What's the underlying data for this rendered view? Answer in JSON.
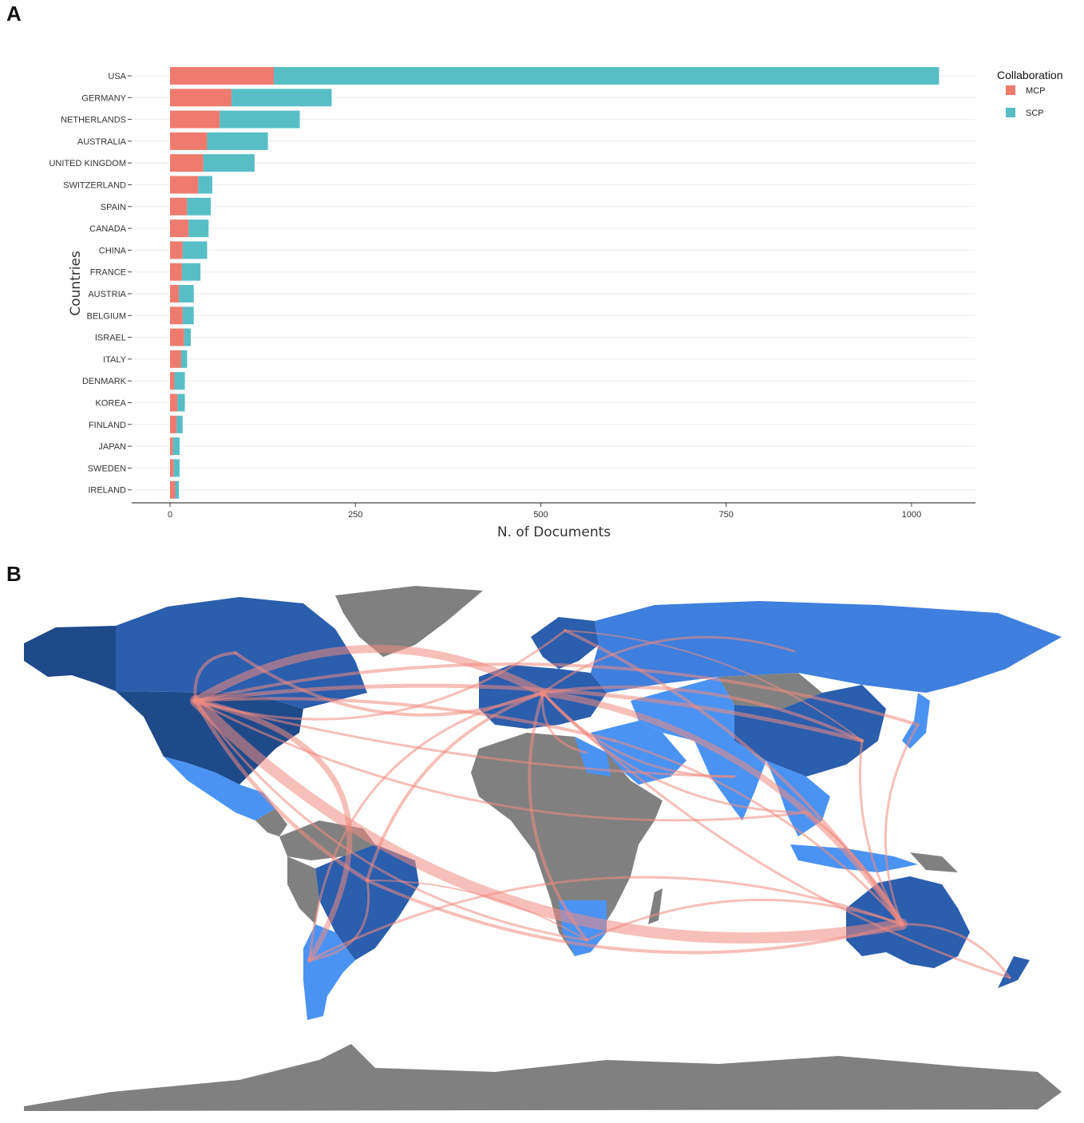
{
  "panels": {
    "a": "A",
    "b": "B"
  },
  "colors": {
    "mcp": "#EE7B6E",
    "scp": "#57BEC6",
    "link": "#F08A80",
    "land_gray": "#808080",
    "land_dark": "#2B5EAD",
    "land_mid": "#3F7FDD",
    "land_light": "#4A93F2",
    "land_darkest": "#1F4A8A"
  },
  "chart_data": {
    "type": "bar",
    "orientation": "horizontal",
    "stacked": true,
    "categories": [
      "USA",
      "GERMANY",
      "NETHERLANDS",
      "AUSTRALIA",
      "UNITED KINGDOM",
      "SWITZERLAND",
      "SPAIN",
      "CANADA",
      "CHINA",
      "FRANCE",
      "AUSTRIA",
      "BELGIUM",
      "ISRAEL",
      "ITALY",
      "DENMARK",
      "KOREA",
      "FINLAND",
      "JAPAN",
      "SWEDEN",
      "IRELAND"
    ],
    "series": [
      {
        "name": "MCP",
        "values": [
          140,
          83,
          67,
          50,
          45,
          38,
          23,
          25,
          17,
          16,
          12,
          17,
          19,
          15,
          6,
          10,
          9,
          4,
          5,
          7
        ]
      },
      {
        "name": "SCP",
        "values": [
          897,
          135,
          108,
          82,
          69,
          19,
          32,
          27,
          33,
          25,
          20,
          15,
          9,
          8,
          14,
          10,
          8,
          9,
          8,
          5
        ]
      }
    ],
    "xlabel": "N. of Documents",
    "ylabel": "Countries",
    "xlim": [
      0,
      1090
    ],
    "xticks": [
      0,
      250,
      500,
      750,
      1000
    ],
    "legend": {
      "title": "Collaboration",
      "position": "top-right"
    },
    "grid": true
  },
  "map": {
    "type": "collaboration-network-map",
    "regions": [
      "north-america",
      "greenland",
      "south-america",
      "europe",
      "africa",
      "russia-asia",
      "middle-east",
      "india",
      "southeast-asia",
      "australia",
      "new-zealand",
      "antarctica",
      "japan",
      "madagascar"
    ]
  }
}
